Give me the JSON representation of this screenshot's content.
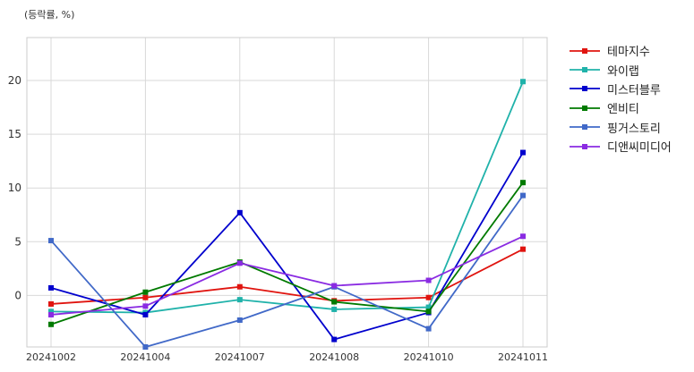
{
  "unit_label": "(등락률, %)",
  "chart_data": {
    "type": "line",
    "categories": [
      "20241002",
      "20241004",
      "20241007",
      "20241008",
      "20241010",
      "20241011"
    ],
    "yticks": [
      0,
      5,
      10,
      15,
      20
    ],
    "ylim": [
      -4.8,
      24
    ],
    "grid": true,
    "legend_position": "outside-right",
    "series": [
      {
        "name": "테마지수",
        "color": "#e0140f",
        "values": [
          -0.8,
          -0.2,
          0.8,
          -0.5,
          -0.2,
          4.3
        ]
      },
      {
        "name": "와이랩",
        "color": "#20b2aa",
        "values": [
          -1.5,
          -1.6,
          -0.4,
          -1.3,
          -1.1,
          19.9
        ]
      },
      {
        "name": "미스터블루",
        "color": "#0000cd",
        "values": [
          0.7,
          -1.8,
          7.7,
          -4.1,
          -1.6,
          13.3
        ]
      },
      {
        "name": "엔비티",
        "color": "#007a00",
        "values": [
          -2.7,
          0.3,
          3.1,
          -0.6,
          -1.5,
          10.5
        ]
      },
      {
        "name": "핑거스토리",
        "color": "#4169c8",
        "values": [
          5.1,
          -4.8,
          -2.3,
          0.8,
          -3.1,
          9.3
        ]
      },
      {
        "name": "디앤씨미디어",
        "color": "#8a2be2",
        "values": [
          -1.8,
          -1.0,
          3.0,
          0.9,
          1.4,
          5.5
        ]
      }
    ]
  }
}
